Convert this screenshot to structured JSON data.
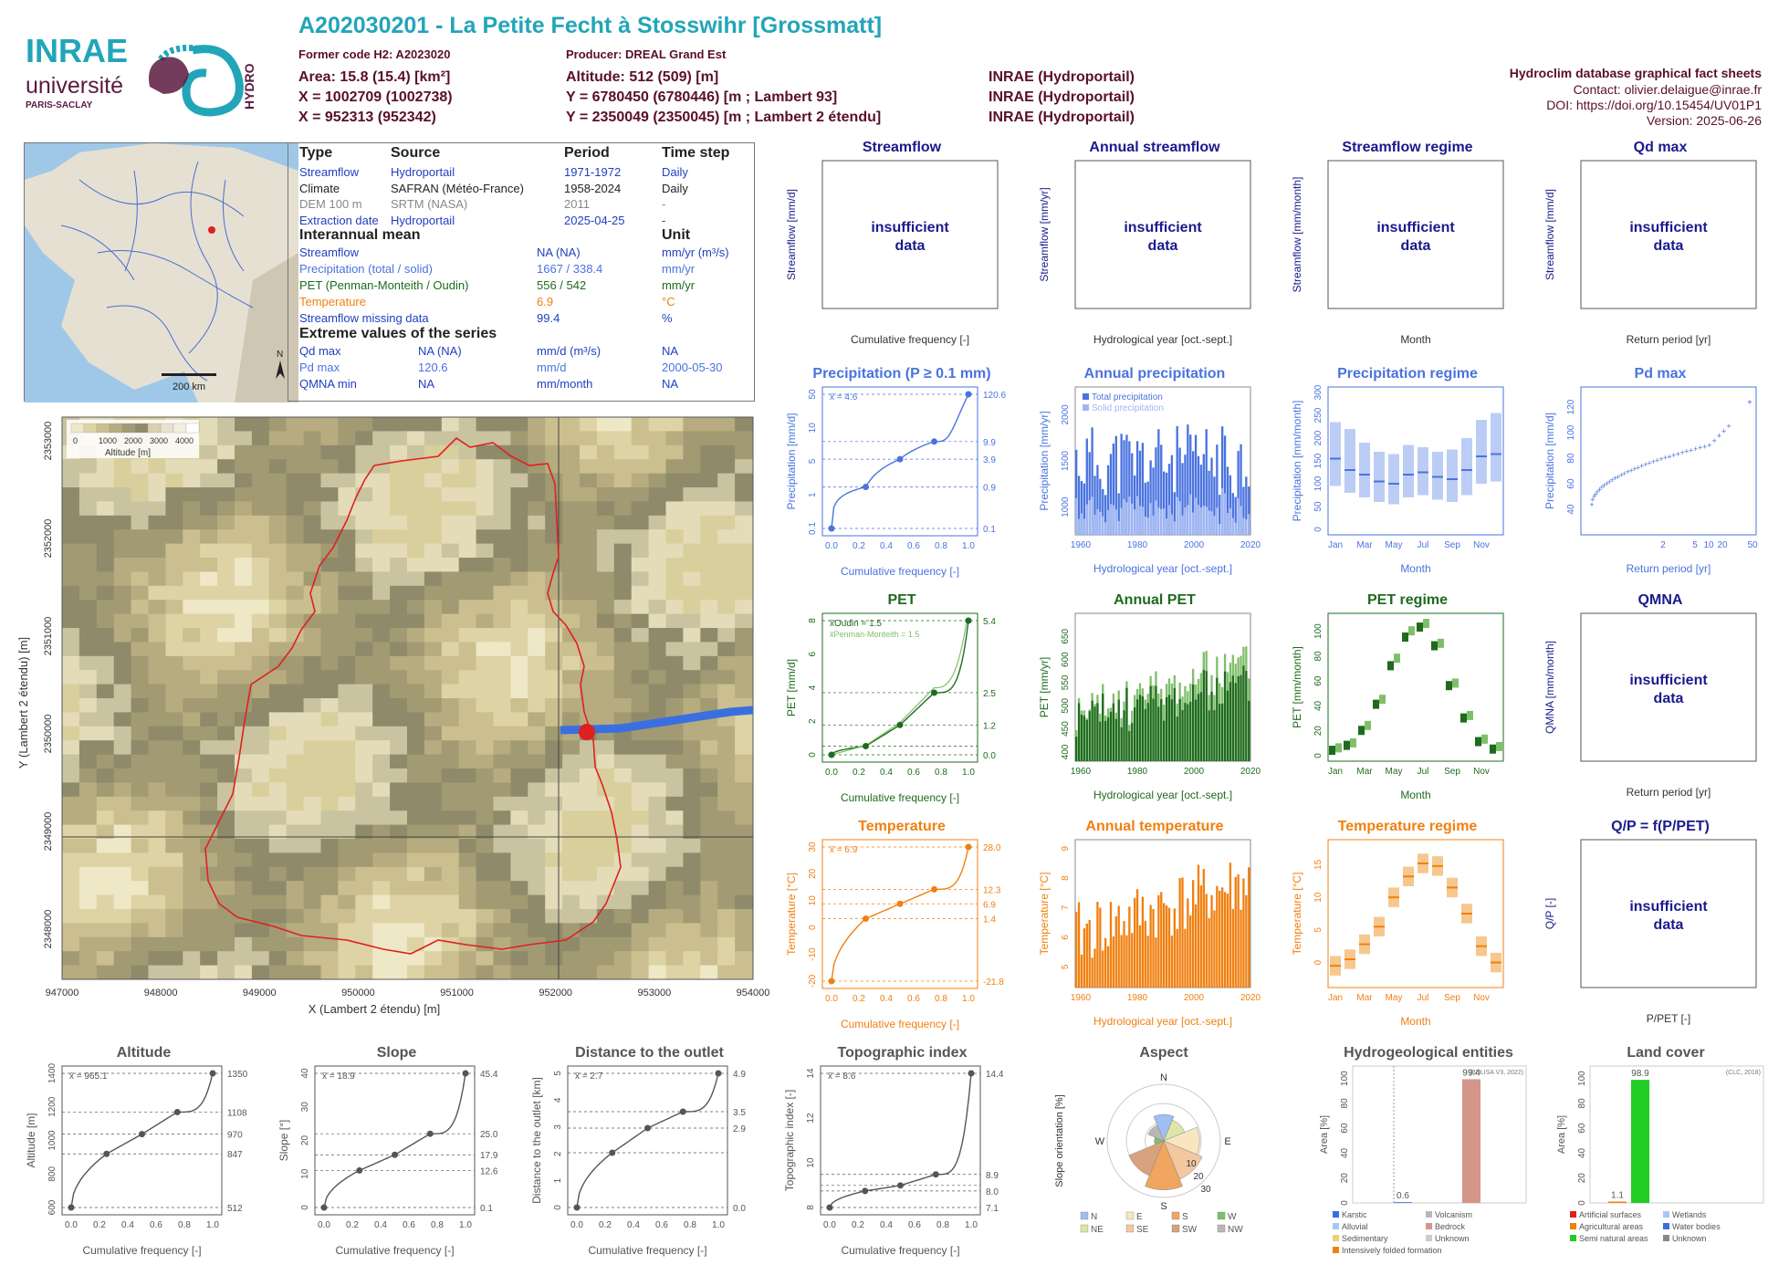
{
  "header": {
    "title": "A202030201 - La Petite Fecht à Stosswihr [Grossmatt]",
    "former_code": "Former code H2: A2023020",
    "producer": "Producer: DREAL Grand Est",
    "area": "Area: 15.8 (15.4) [km²]",
    "altitude": "Altitude: 512 (509) [m]",
    "x93": "X = 1002709 (1002738)",
    "y93": "Y = 6780450 (6780446) [m ; Lambert 93]",
    "x2e": "X = 952313 (952342)",
    "y2e": "Y = 2350049 (2350045) [m ; Lambert 2 étendu]",
    "src1": "INRAE (Hydroportail)",
    "src2": "INRAE (Hydroportail)",
    "src3": "INRAE (Hydroportail)",
    "db_title": "Hydroclim database graphical fact sheets",
    "contact": "Contact: olivier.delaigue@inrae.fr",
    "doi": "DOI: https://doi.org/10.15454/UV01P1",
    "version": "Version: 2025-06-26"
  },
  "logos": {
    "inrae": "INRAE",
    "universite": "université",
    "paris_saclay": "PARIS-SACLAY",
    "hydro": "HYDRO"
  },
  "inset_map": {
    "scale_label": "200 km",
    "north": "N"
  },
  "info_table": {
    "headers": [
      "Type",
      "Source",
      "Period",
      "Time step"
    ],
    "rows": [
      {
        "type": "Streamflow",
        "source": "Hydroportail",
        "period": "1971-1972",
        "step": "Daily",
        "color": "#1f3fbf"
      },
      {
        "type": "Climate",
        "source": "SAFRAN (Météo-France)",
        "period": "1958-2024",
        "step": "Daily",
        "color": "#222222"
      },
      {
        "type": "DEM 100 m",
        "source": "SRTM (NASA)",
        "period": "2011",
        "step": "-",
        "color": "#888888"
      },
      {
        "type": "Extraction date",
        "source": "Hydroportail",
        "period": "2025-04-25",
        "step": "-",
        "color": "#1f3fbf"
      }
    ],
    "interannual_title": "Interannual mean",
    "unit_title": "Unit",
    "interannual": [
      {
        "label": "Streamflow",
        "value": "NA (NA)",
        "unit": "mm/yr (m³/s)",
        "color": "#1f3fbf"
      },
      {
        "label": "Precipitation (total / solid)",
        "value": "1667 / 338.4",
        "unit": "mm/yr",
        "color": "#4a73e0"
      },
      {
        "label": "PET (Penman-Monteith / Oudin)",
        "value": "556 / 542",
        "unit": "mm/yr",
        "color": "#1e6b1e"
      },
      {
        "label": "Temperature",
        "value": "6.9",
        "unit": "°C",
        "color": "#f08010"
      },
      {
        "label": "Streamflow missing data",
        "value": "99.4",
        "unit": "%",
        "color": "#1f3fbf"
      }
    ],
    "extreme_title": "Extreme values of the series",
    "extremes": [
      {
        "label": "Qd max",
        "value": "NA (NA)",
        "unit": "mm/d (m³/s)",
        "date": "NA",
        "color": "#1f3fbf"
      },
      {
        "label": "Pd max",
        "value": "120.6",
        "unit": "mm/d",
        "date": "2000-05-30",
        "color": "#4a73e0"
      },
      {
        "label": "QMNA min",
        "value": "NA",
        "unit": "mm/month",
        "date": "NA",
        "color": "#1f3fbf"
      }
    ]
  },
  "main_map": {
    "xlabel": "X (Lambert 2 étendu) [m]",
    "ylabel": "Y (Lambert 2 étendu) [m]",
    "xticks": [
      "947000",
      "948000",
      "949000",
      "950000",
      "951000",
      "952000",
      "953000",
      "954000"
    ],
    "yticks": [
      "2353000",
      "2352000",
      "2351000",
      "2350000",
      "2349000",
      "2348000"
    ],
    "legend_title": "Altitude [m]",
    "legend_ticks": [
      "0",
      "1000",
      "2000",
      "3000",
      "4000"
    ]
  },
  "colors": {
    "streamflow": "#1a1a8c",
    "precip": "#4a73e0",
    "pet": "#1e6b1e",
    "pet_light": "#7fbf6a",
    "temp": "#f08010",
    "temp_light": "#f6c88e",
    "grey": "#555555"
  },
  "chart_data": [
    {
      "id": "streamflow",
      "type": "line",
      "title": "Streamflow",
      "ylabel": "Streamflow [mm/d]",
      "xlabel": "Cumulative frequency [-]",
      "message": "insufficient data"
    },
    {
      "id": "annual_streamflow",
      "type": "bar",
      "title": "Annual streamflow",
      "ylabel": "Streamflow [mm/yr]",
      "xlabel": "Hydrological year [oct.-sept.]",
      "message": "insufficient data"
    },
    {
      "id": "streamflow_regime",
      "type": "bar",
      "title": "Streamflow regime",
      "ylabel": "Streamflow [mm/month]",
      "xlabel": "Month",
      "message": "insufficient data"
    },
    {
      "id": "qd_max",
      "type": "scatter",
      "title": "Qd max",
      "ylabel": "Streamflow [mm/d]",
      "xlabel": "Return period [yr]",
      "message": "insufficient data"
    },
    {
      "id": "precipitation",
      "type": "line",
      "title": "Precipitation (P ≥ 0.1 mm)",
      "ylabel": "Precipitation [mm/d]",
      "xlabel": "Cumulative frequency [-]",
      "mean_label": "x̄ = 4.6",
      "x": [
        0,
        0.25,
        0.5,
        0.75,
        1.0
      ],
      "y": [
        0.1,
        0.9,
        3.9,
        9.9,
        120.6
      ],
      "right_ticks": [
        "120.6",
        "9.9",
        "3.9",
        "0.9",
        "0.1"
      ],
      "yticks": [
        "0.1",
        "1",
        "5",
        "10",
        "50"
      ],
      "xticks": [
        "0.0",
        "0.2",
        "0.4",
        "0.6",
        "0.8",
        "1.0"
      ],
      "log": true
    },
    {
      "id": "annual_precipitation",
      "type": "bar",
      "title": "Annual precipitation",
      "ylabel": "Precipitation [mm/yr]",
      "xlabel": "Hydrological year [oct.-sept.]",
      "legend": [
        "Total precipitation",
        "Solid precipitation"
      ],
      "xticks": [
        "1960",
        "1980",
        "2000",
        "2020"
      ],
      "yticks": [
        "1000",
        "1500",
        "2000"
      ],
      "ylim": [
        700,
        2300
      ],
      "year_range": [
        1959,
        2024
      ]
    },
    {
      "id": "precipitation_regime",
      "type": "bar",
      "title": "Precipitation regime",
      "ylabel": "Precipitation [mm/month]",
      "xlabel": "Month",
      "categories": [
        "Jan",
        "Feb",
        "Mar",
        "Apr",
        "May",
        "Jun",
        "Jul",
        "Aug",
        "Sep",
        "Oct",
        "Nov",
        "Dec"
      ],
      "xticks": [
        "Jan",
        "Mar",
        "May",
        "Jul",
        "Sep",
        "Nov"
      ],
      "yticks": [
        "0",
        "50",
        "100",
        "150",
        "200",
        "250",
        "300"
      ],
      "median": [
        155,
        130,
        120,
        105,
        100,
        120,
        125,
        115,
        110,
        130,
        160,
        165
      ],
      "low": [
        95,
        80,
        70,
        60,
        55,
        70,
        75,
        65,
        60,
        75,
        100,
        105
      ],
      "high": [
        235,
        220,
        190,
        170,
        165,
        185,
        180,
        170,
        175,
        200,
        240,
        255
      ]
    },
    {
      "id": "pd_max",
      "type": "scatter",
      "title": "Pd max",
      "ylabel": "Precipitation [mm/d]",
      "xlabel": "Return period [yr]",
      "xticks": [
        "2",
        "5",
        "10",
        "20",
        "50"
      ],
      "yticks": [
        "40",
        "60",
        "80",
        "100",
        "120"
      ]
    },
    {
      "id": "pet",
      "type": "line",
      "title": "PET",
      "ylabel": "PET [mm/d]",
      "xlabel": "Cumulative frequency [-]",
      "mean_label": "x̄Oudin = 1.5",
      "mean_label2": "x̄Penman-Monteith = 1.5",
      "x": [
        0,
        0.25,
        0.5,
        0.75,
        1.0
      ],
      "y": [
        0.0,
        0.35,
        1.2,
        2.5,
        5.4
      ],
      "right_ticks": [
        "5.4",
        "2.5",
        "1.2",
        "0.0"
      ],
      "yticks": [
        "0",
        "2",
        "4",
        "6",
        "8"
      ],
      "xticks": [
        "0.0",
        "0.2",
        "0.4",
        "0.6",
        "0.8",
        "1.0"
      ]
    },
    {
      "id": "annual_pet",
      "type": "bar",
      "title": "Annual PET",
      "ylabel": "PET [mm/yr]",
      "xlabel": "Hydrological year [oct.-sept.]",
      "xticks": [
        "1960",
        "1980",
        "2000",
        "2020"
      ],
      "yticks": [
        "400",
        "450",
        "500",
        "550",
        "600",
        "650"
      ],
      "ylim": [
        380,
        700
      ]
    },
    {
      "id": "pet_regime",
      "type": "bar",
      "title": "PET regime",
      "ylabel": "PET [mm/month]",
      "xlabel": "Month",
      "categories": [
        "Jan",
        "Feb",
        "Mar",
        "Apr",
        "May",
        "Jun",
        "Jul",
        "Aug",
        "Sep",
        "Oct",
        "Nov",
        "Dec"
      ],
      "xticks": [
        "Jan",
        "Mar",
        "May",
        "Jul",
        "Sep",
        "Nov"
      ],
      "yticks": [
        "0",
        "20",
        "40",
        "60",
        "80",
        "100"
      ],
      "oudin": [
        4,
        8,
        20,
        41,
        72,
        95,
        103,
        88,
        56,
        30,
        11,
        5
      ],
      "penman": [
        6,
        10,
        24,
        45,
        78,
        100,
        106,
        90,
        58,
        32,
        13,
        7
      ]
    },
    {
      "id": "qmna",
      "type": "scatter",
      "title": "QMNA",
      "ylabel": "QMNA [mm/month]",
      "xlabel": "Return period [yr]",
      "message": "insufficient data"
    },
    {
      "id": "temperature",
      "type": "line",
      "title": "Temperature",
      "ylabel": "Temperature [°C]",
      "xlabel": "Cumulative frequency [-]",
      "mean_label": "x̄ = 6.9",
      "x": [
        0,
        0.25,
        0.5,
        0.75,
        1.0
      ],
      "y": [
        -21.8,
        1.4,
        6.9,
        12.3,
        28.0
      ],
      "right_ticks": [
        "28.0",
        "12.3",
        "6.9",
        "1.4",
        "-21.8"
      ],
      "yticks": [
        "-20",
        "-10",
        "0",
        "10",
        "20",
        "30"
      ],
      "xticks": [
        "0.0",
        "0.2",
        "0.4",
        "0.6",
        "0.8",
        "1.0"
      ]
    },
    {
      "id": "annual_temperature",
      "type": "bar",
      "title": "Annual temperature",
      "ylabel": "Temperature [°C]",
      "xlabel": "Hydrological year [oct.-sept.]",
      "xticks": [
        "1960",
        "1980",
        "2000",
        "2020"
      ],
      "yticks": [
        "5",
        "6",
        "7",
        "8",
        "9"
      ],
      "ylim": [
        4.3,
        9.3
      ]
    },
    {
      "id": "temperature_regime",
      "type": "bar",
      "title": "Temperature regime",
      "ylabel": "Temperature [°C]",
      "xlabel": "Month",
      "categories": [
        "Jan",
        "Feb",
        "Mar",
        "Apr",
        "May",
        "Jun",
        "Jul",
        "Aug",
        "Sep",
        "Oct",
        "Nov",
        "Dec"
      ],
      "xticks": [
        "Jan",
        "Mar",
        "May",
        "Jul",
        "Sep",
        "Nov"
      ],
      "yticks": [
        "0",
        "5",
        "10",
        "15"
      ],
      "median": [
        -0.5,
        0.5,
        2.8,
        5.5,
        10,
        13.2,
        15.2,
        14.8,
        11.5,
        7.5,
        2.5,
        0.0
      ]
    },
    {
      "id": "qp",
      "type": "scatter",
      "title": "Q/P = f(P/PET)",
      "ylabel": "Q/P [-]",
      "xlabel": "P/PET [-]",
      "message": "insufficient data"
    },
    {
      "id": "altitude",
      "type": "line",
      "title": "Altitude",
      "ylabel": "Altitude [m]",
      "xlabel": "Cumulative frequency [-]",
      "mean_label": "x̄ = 965.1",
      "x": [
        0,
        0.25,
        0.5,
        0.75,
        1.0
      ],
      "y": [
        512,
        847,
        970,
        1108,
        1350
      ],
      "right_ticks": [
        "1350",
        "1108",
        "970",
        "847",
        "512"
      ],
      "yticks": [
        "600",
        "800",
        "1000",
        "1200",
        "1400"
      ],
      "xticks": [
        "0.0",
        "0.2",
        "0.4",
        "0.6",
        "0.8",
        "1.0"
      ]
    },
    {
      "id": "slope",
      "type": "line",
      "title": "Slope",
      "ylabel": "Slope [°]",
      "xlabel": "Cumulative frequency [-]",
      "mean_label": "x̄ = 18.9",
      "x": [
        0,
        0.25,
        0.5,
        0.75,
        1.0
      ],
      "y": [
        0.1,
        12.6,
        17.9,
        25.0,
        45.4
      ],
      "right_ticks": [
        "45.4",
        "25.0",
        "17.9",
        "12.6",
        "0.1"
      ],
      "yticks": [
        "0",
        "10",
        "20",
        "30",
        "40"
      ],
      "xticks": [
        "0.0",
        "0.2",
        "0.4",
        "0.6",
        "0.8",
        "1.0"
      ]
    },
    {
      "id": "distance",
      "type": "line",
      "title": "Distance to the outlet",
      "ylabel": "Distance to the outlet [km]",
      "xlabel": "Cumulative frequency [-]",
      "mean_label": "x̄ = 2.7",
      "x": [
        0,
        0.25,
        0.5,
        0.75,
        1.0
      ],
      "y": [
        0.0,
        2.0,
        2.9,
        3.5,
        4.9
      ],
      "right_ticks": [
        "4.9",
        "3.5",
        "2.9",
        "0.0"
      ],
      "yticks": [
        "0",
        "1",
        "2",
        "3",
        "4",
        "5"
      ],
      "xticks": [
        "0.0",
        "0.2",
        "0.4",
        "0.6",
        "0.8",
        "1.0"
      ]
    },
    {
      "id": "topo_index",
      "type": "line",
      "title": "Topographic index",
      "ylabel": "Topographic index [-]",
      "xlabel": "Cumulative frequency [-]",
      "mean_label": "x̄ = 8.6",
      "x": [
        0,
        0.25,
        0.5,
        0.75,
        1.0
      ],
      "y": [
        7.1,
        8.0,
        8.3,
        8.9,
        14.4
      ],
      "right_ticks": [
        "14.4",
        "8.9",
        "8.0",
        "7.1"
      ],
      "yticks": [
        "8",
        "10",
        "12",
        "14"
      ],
      "xticks": [
        "0.0",
        "0.2",
        "0.4",
        "0.6",
        "0.8",
        "1.0"
      ]
    },
    {
      "id": "aspect",
      "type": "pie",
      "title": "Aspect",
      "ylabel": "Slope orientation [%]",
      "directions": [
        "N",
        "NE",
        "E",
        "SE",
        "S",
        "SW",
        "W",
        "NW"
      ],
      "values": [
        14,
        12,
        19,
        22,
        26,
        20,
        5,
        9
      ],
      "ring_labels": [
        "10",
        "20",
        "30"
      ],
      "legend": [
        "N",
        "E",
        "S",
        "W",
        "NE",
        "SE",
        "SW",
        "NW"
      ]
    },
    {
      "id": "hydrogeology",
      "type": "bar",
      "title": "Hydrogeological entities",
      "ylabel": "Area [%]",
      "source": "(BDLISA V3, 2022)",
      "values": [
        0.6,
        99.4
      ],
      "value_labels": [
        "0.6",
        "99.4"
      ],
      "yticks": [
        "0",
        "20",
        "40",
        "60",
        "80",
        "100"
      ],
      "legend": [
        "Karstic",
        "Volcanism",
        "Alluvial",
        "Bedrock",
        "Sedimentary",
        "Unknown",
        "Intensively folded formation"
      ]
    },
    {
      "id": "land_cover",
      "type": "bar",
      "title": "Land cover",
      "ylabel": "Area [%]",
      "source": "(CLC, 2018)",
      "values": [
        1.1,
        98.9
      ],
      "value_labels": [
        "1.1",
        "98.9"
      ],
      "yticks": [
        "0",
        "20",
        "40",
        "60",
        "80",
        "100"
      ],
      "legend": [
        "Artificial surfaces",
        "Wetlands",
        "Agricultural areas",
        "Water bodies",
        "Semi natural areas",
        "Unknown"
      ]
    }
  ]
}
